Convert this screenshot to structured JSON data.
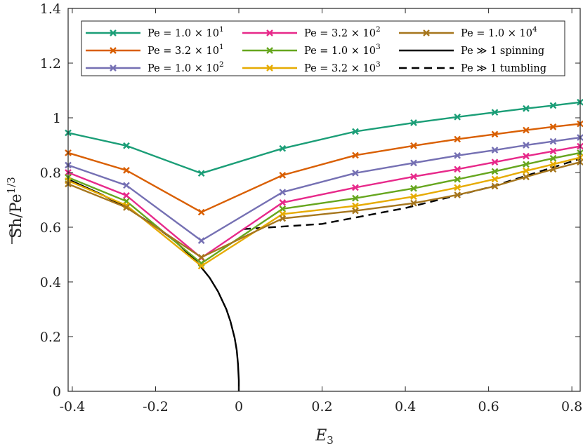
{
  "chart_data": {
    "type": "line",
    "title": "",
    "xlabel": "E_3",
    "ylabel": "Sh/Pe^(1/3)",
    "xlabel_main": "E",
    "xlabel_sub": "3",
    "ylabel_main": "Sh/Pe",
    "ylabel_exp": "1/3",
    "xlim": [
      -0.41,
      0.82
    ],
    "ylim": [
      0,
      1.4
    ],
    "xticks": [
      -0.4,
      -0.2,
      0,
      0.2,
      0.4,
      0.6,
      0.8
    ],
    "xtick_labels": [
      "-0.4",
      "-0.2",
      "0",
      "0.2",
      "0.4",
      "0.6",
      "0.8"
    ],
    "yticks": [
      0,
      0.2,
      0.4,
      0.6,
      0.8,
      1,
      1.2,
      1.4
    ],
    "ytick_labels": [
      "0",
      "0.2",
      "0.4",
      "0.6",
      "0.8",
      "1",
      "1.2",
      "1.4"
    ],
    "grid": false,
    "legend_position": "top",
    "x": [
      -0.41,
      -0.27,
      -0.09,
      0.105,
      0.28,
      0.42,
      0.525,
      0.615,
      0.69,
      0.755,
      0.82
    ],
    "series": [
      {
        "name": "Pe = 1.0 × 10^1",
        "label_pre": "Pe = 1.0 × 10",
        "label_exp": "1",
        "color": "#1b9e77",
        "values": [
          0.945,
          0.898,
          0.797,
          0.888,
          0.95,
          0.982,
          1.003,
          1.02,
          1.034,
          1.045,
          1.057
        ]
      },
      {
        "name": "Pe = 3.2 × 10^1",
        "label_pre": "Pe = 3.2 × 10",
        "label_exp": "1",
        "color": "#d95f02",
        "values": [
          0.872,
          0.808,
          0.655,
          0.79,
          0.863,
          0.898,
          0.922,
          0.94,
          0.955,
          0.967,
          0.978
        ]
      },
      {
        "name": "Pe = 1.0 × 10^2",
        "label_pre": "Pe = 1.0 × 10",
        "label_exp": "2",
        "color": "#7570b3",
        "values": [
          0.827,
          0.753,
          0.551,
          0.728,
          0.798,
          0.835,
          0.862,
          0.882,
          0.9,
          0.914,
          0.928
        ]
      },
      {
        "name": "Pe = 3.2 × 10^2",
        "label_pre": "Pe = 3.2 × 10",
        "label_exp": "2",
        "color": "#e7298a",
        "values": [
          0.8,
          0.716,
          0.488,
          0.69,
          0.745,
          0.785,
          0.812,
          0.838,
          0.86,
          0.878,
          0.896
        ]
      },
      {
        "name": "Pe = 1.0 × 10^3",
        "label_pre": "Pe = 1.0 × 10",
        "label_exp": "3",
        "color": "#66a61e",
        "values": [
          0.782,
          0.695,
          0.468,
          0.667,
          0.706,
          0.742,
          0.775,
          0.804,
          0.83,
          0.852,
          0.872
        ]
      },
      {
        "name": "Pe = 3.2 × 10^3",
        "label_pre": "Pe = 3.2 × 10",
        "label_exp": "3",
        "color": "#e6ab02",
        "values": [
          0.77,
          0.68,
          0.458,
          0.648,
          0.678,
          0.712,
          0.745,
          0.776,
          0.806,
          0.83,
          0.855
        ]
      },
      {
        "name": "Pe = 1.0 × 10^4",
        "label_pre": "Pe = 1.0 × 10",
        "label_exp": "4",
        "color": "#a6761d",
        "values": [
          0.758,
          0.672,
          0.49,
          0.632,
          0.66,
          0.688,
          0.718,
          0.75,
          0.784,
          0.812,
          0.838
        ]
      }
    ],
    "asymptote_spinning": {
      "name": "Pe ≫ 1 spinning",
      "color": "#000000",
      "style": "solid",
      "x": [
        -0.41,
        -0.33,
        -0.27,
        -0.2,
        -0.15,
        -0.1,
        -0.07,
        -0.05,
        -0.03,
        -0.02,
        -0.01,
        -0.005,
        -0.002,
        0,
        0
      ],
      "y": [
        0.775,
        0.72,
        0.672,
        0.603,
        0.545,
        0.472,
        0.415,
        0.365,
        0.3,
        0.255,
        0.195,
        0.15,
        0.1,
        0.04,
        0
      ]
    },
    "asymptote_tumbling": {
      "name": "Pe ≫ 1 tumbling",
      "color": "#000000",
      "style": "dashed",
      "x": [
        0.01,
        0.2,
        0.4,
        0.6,
        0.82
      ],
      "y": [
        0.593,
        0.612,
        0.67,
        0.745,
        0.85
      ]
    },
    "legend": [
      {
        "text_pre": "Pe = 1.0 × 10",
        "text_exp": "1",
        "color": "#1b9e77",
        "style": "marker"
      },
      {
        "text_pre": "Pe = 3.2 × 10",
        "text_exp": "2",
        "color": "#e7298a",
        "style": "marker"
      },
      {
        "text_pre": "Pe = 1.0 × 10",
        "text_exp": "4",
        "color": "#a6761d",
        "style": "marker"
      },
      {
        "text_pre": "Pe = 3.2 × 10",
        "text_exp": "1",
        "color": "#d95f02",
        "style": "marker"
      },
      {
        "text_pre": "Pe = 1.0 × 10",
        "text_exp": "3",
        "color": "#66a61e",
        "style": "marker"
      },
      {
        "text_pre": "Pe ≫ 1 spinning",
        "text_exp": "",
        "color": "#000000",
        "style": "solid"
      },
      {
        "text_pre": "Pe = 1.0 × 10",
        "text_exp": "2",
        "color": "#7570b3",
        "style": "marker"
      },
      {
        "text_pre": "Pe = 3.2 × 10",
        "text_exp": "3",
        "color": "#e6ab02",
        "style": "marker"
      },
      {
        "text_pre": "Pe ≫ 1 tumbling",
        "text_exp": "",
        "color": "#000000",
        "style": "dashed"
      }
    ]
  }
}
